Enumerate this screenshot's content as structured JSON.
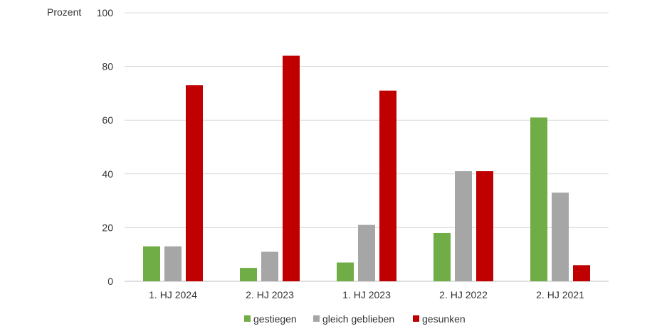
{
  "chart_data": {
    "type": "bar",
    "ylabel": "Prozent",
    "ylim": [
      0,
      100
    ],
    "yticks": [
      0,
      20,
      40,
      60,
      80,
      100
    ],
    "grid": true,
    "legend_position": "bottom",
    "categories": [
      "1. HJ 2024",
      "2. HJ 2023",
      "1. HJ 2023",
      "2. HJ 2022",
      "2. HJ 2021"
    ],
    "series": [
      {
        "name": "gestiegen",
        "color": "#70ad47",
        "values": [
          13,
          5,
          7,
          18,
          61
        ]
      },
      {
        "name": "gleich geblieben",
        "color": "#a6a6a6",
        "values": [
          13,
          11,
          21,
          41,
          33
        ]
      },
      {
        "name": "gesunken",
        "color": "#c00000",
        "values": [
          73,
          84,
          71,
          41,
          6
        ]
      }
    ]
  }
}
